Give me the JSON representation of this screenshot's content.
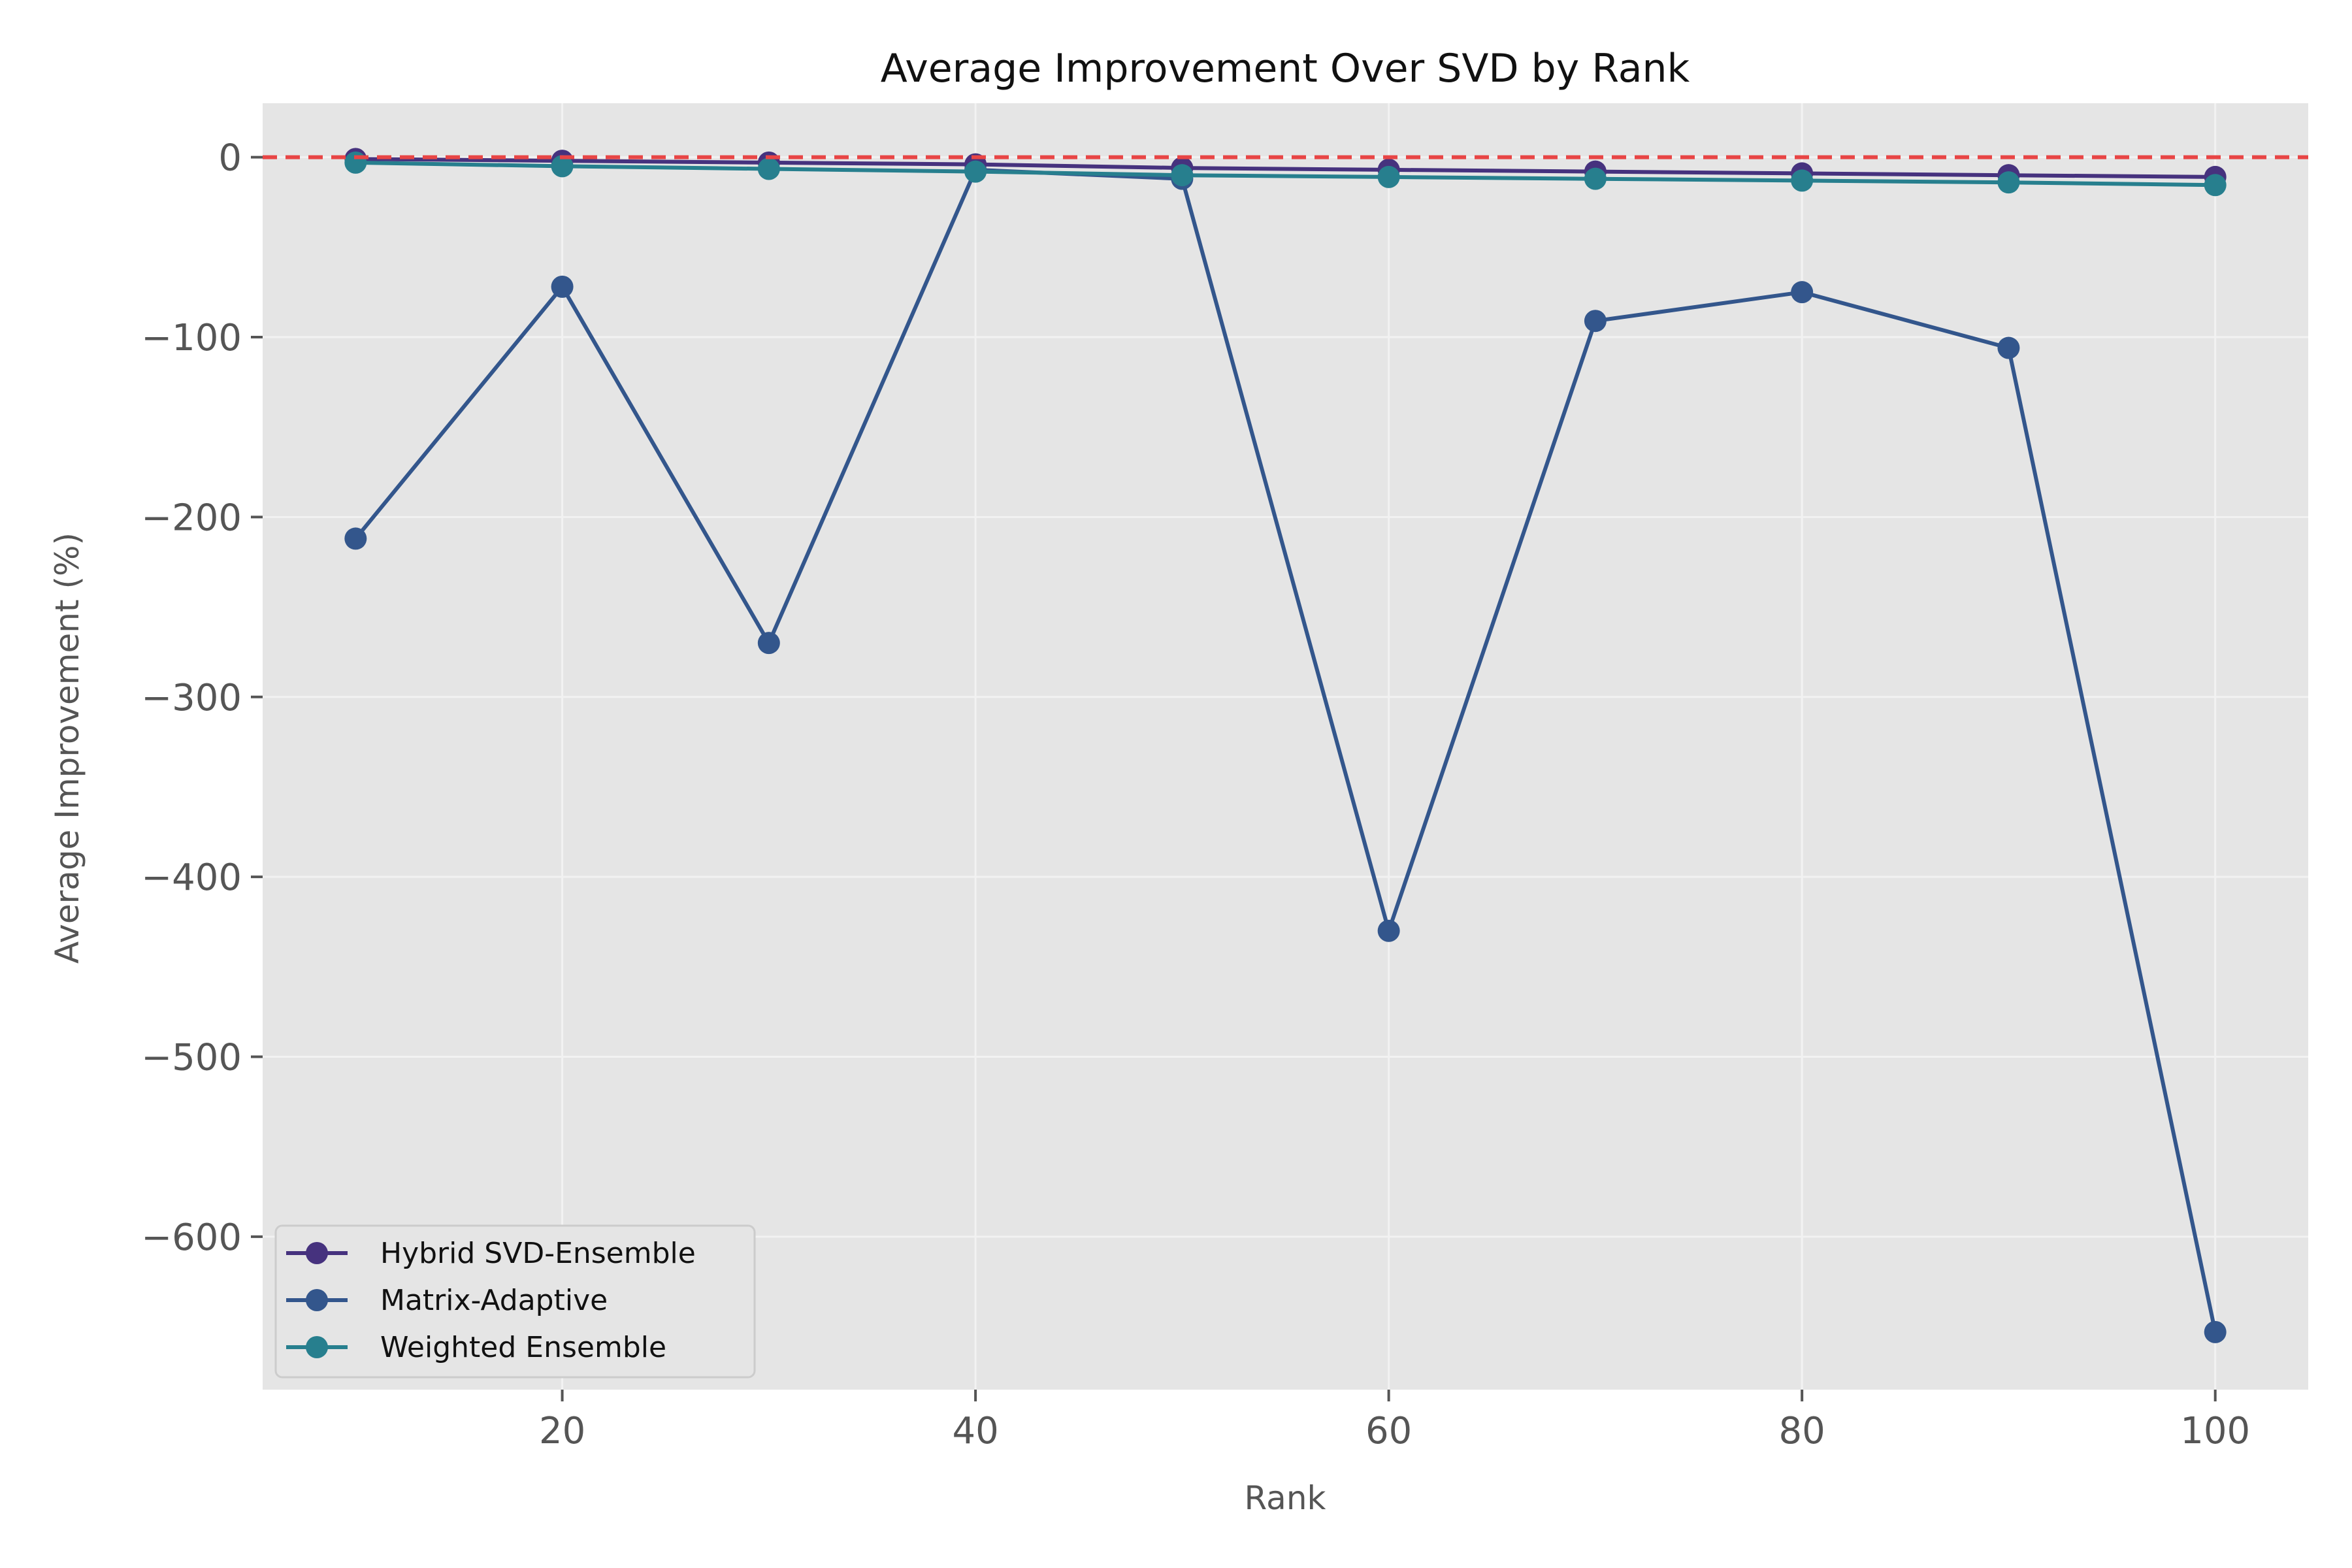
{
  "chart_data": {
    "type": "line",
    "title": "Average Improvement Over SVD by Rank",
    "xlabel": "Rank",
    "ylabel": "Average Improvement (%)",
    "xlim": [
      5.5,
      104.5
    ],
    "ylim": [
      -685,
      30
    ],
    "xticks": [
      20,
      40,
      60,
      80,
      100
    ],
    "xtick_labels": [
      "20",
      "40",
      "60",
      "80",
      "100"
    ],
    "yticks": [
      0,
      -100,
      -200,
      -300,
      -400,
      -500,
      -600
    ],
    "ytick_labels": [
      "0",
      "−100",
      "−200",
      "−300",
      "−400",
      "−500",
      "−600"
    ],
    "grid": true,
    "legend_position": "lower-left",
    "x": [
      10,
      20,
      30,
      40,
      50,
      60,
      70,
      80,
      90,
      100
    ],
    "reference_line": {
      "y": 0,
      "style": "dashed",
      "color": "#e84545"
    },
    "series": [
      {
        "name": "Matrix-Adaptive",
        "color": "#33568c",
        "values": [
          -212,
          -72,
          -270,
          -7,
          -12,
          -430,
          -91,
          -75,
          -106,
          -653
        ]
      },
      {
        "name": "Hybrid SVD-Ensemble",
        "color": "#46327e",
        "values": [
          -1,
          -2,
          -3,
          -4,
          -6,
          -7,
          -8,
          -9,
          -10,
          -11
        ]
      },
      {
        "name": "Weighted Ensemble",
        "color": "#277f8e",
        "values": [
          -3,
          -5,
          -6.5,
          -8,
          -10,
          -11,
          -12,
          -13,
          -14,
          -15.5
        ]
      }
    ],
    "legend_order": [
      "Hybrid SVD-Ensemble",
      "Matrix-Adaptive",
      "Weighted Ensemble"
    ]
  },
  "style": {
    "plot_background": "#e5e5e5",
    "grid_color": "#f2f2f2"
  }
}
